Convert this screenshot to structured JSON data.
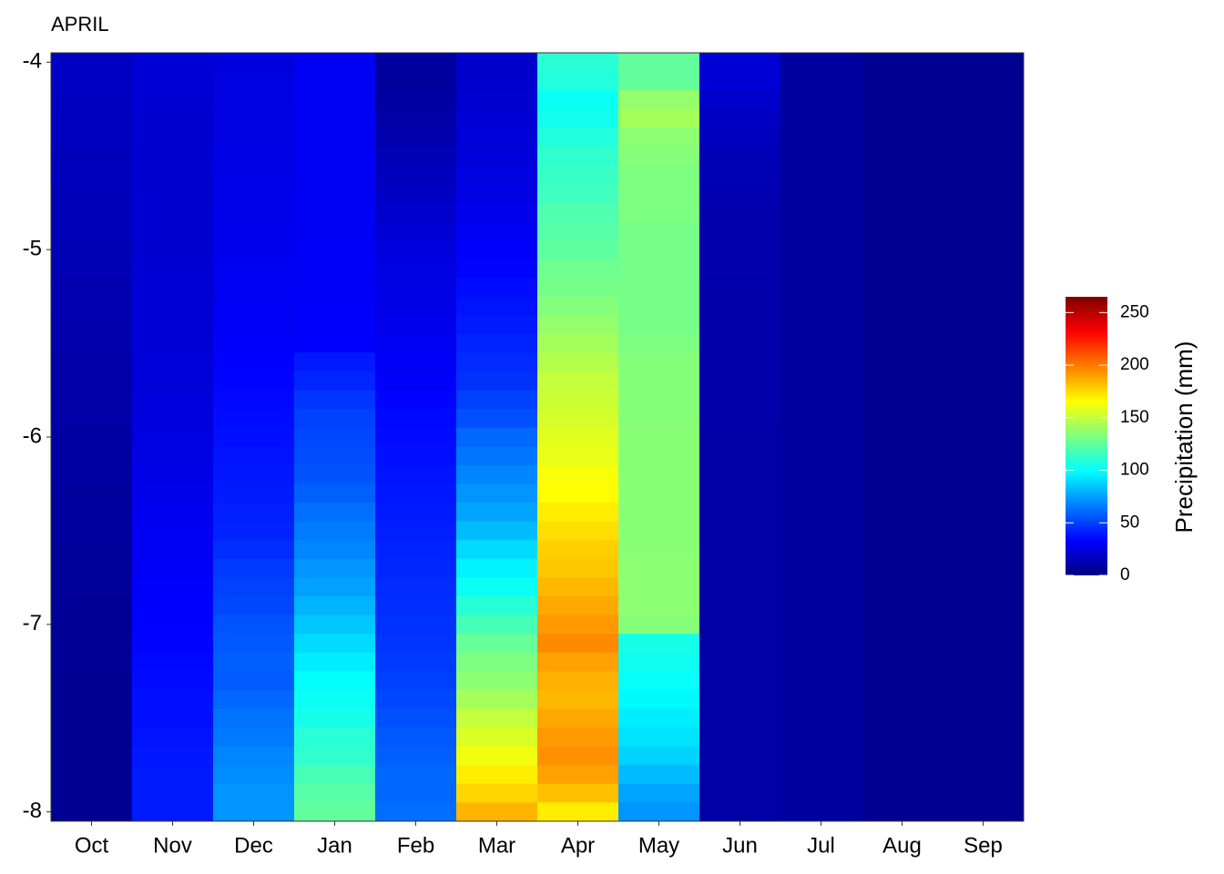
{
  "chart_data": {
    "type": "heatmap",
    "title": "APRIL",
    "categories": [
      "Oct",
      "Nov",
      "Dec",
      "Jan",
      "Feb",
      "Mar",
      "Apr",
      "May",
      "Jun",
      "Jul",
      "Aug",
      "Sep"
    ],
    "y": [
      -4,
      -4.1,
      -4.2,
      -4.3,
      -4.4,
      -4.5,
      -4.6,
      -4.7,
      -4.8,
      -4.9,
      -5,
      -5.1,
      -5.2,
      -5.3,
      -5.4,
      -5.5,
      -5.6,
      -5.7,
      -5.8,
      -5.9,
      -6,
      -6.1,
      -6.2,
      -6.3,
      -6.4,
      -6.5,
      -6.6,
      -6.7,
      -6.8,
      -6.9,
      -7,
      -7.1,
      -7.2,
      -7.3,
      -7.4,
      -7.5,
      -7.6,
      -7.7,
      -7.8,
      -7.9,
      -8
    ],
    "ylim": [
      -3.95,
      -8.05
    ],
    "yticks": [
      -4,
      -5,
      -6,
      -7,
      -8
    ],
    "z": [
      [
        18,
        18,
        17,
        17,
        17,
        16,
        16,
        15,
        15,
        15,
        14,
        14,
        13,
        13,
        12,
        12,
        11,
        11,
        10,
        10,
        9,
        9,
        9,
        8,
        8,
        8,
        7,
        7,
        7,
        6,
        6,
        6,
        6,
        5,
        5,
        5,
        5,
        5,
        5,
        5,
        5
      ],
      [
        22,
        22,
        22,
        21,
        21,
        21,
        21,
        21,
        21,
        21,
        21,
        22,
        22,
        22,
        22,
        22,
        23,
        23,
        24,
        24,
        25,
        26,
        27,
        28,
        29,
        30,
        30,
        31,
        32,
        33,
        33,
        34,
        35,
        36,
        37,
        37,
        38,
        39,
        40,
        40,
        40
      ],
      [
        24,
        25,
        25,
        26,
        26,
        27,
        27,
        28,
        28,
        29,
        29,
        30,
        30,
        31,
        31,
        32,
        33,
        34,
        35,
        36,
        37,
        38,
        39,
        40,
        41,
        42,
        45,
        48,
        50,
        52,
        55,
        56,
        58,
        57,
        60,
        63,
        65,
        68,
        70,
        72,
        72
      ],
      [
        30,
        30,
        30,
        30,
        30,
        30,
        30,
        30,
        30,
        30,
        31,
        31,
        31,
        32,
        32,
        33,
        40,
        43,
        47,
        50,
        52,
        53,
        55,
        58,
        62,
        65,
        68,
        72,
        75,
        80,
        85,
        90,
        95,
        100,
        102,
        105,
        110,
        112,
        118,
        122,
        125
      ],
      [
        8,
        8,
        9,
        10,
        12,
        14,
        16,
        18,
        20,
        22,
        24,
        25,
        26,
        27,
        28,
        30,
        31,
        32,
        34,
        35,
        36,
        37,
        38,
        39,
        40,
        41,
        42,
        43,
        44,
        45,
        46,
        47,
        48,
        50,
        52,
        54,
        56,
        58,
        60,
        60,
        62
      ],
      [
        20,
        20,
        21,
        22,
        23,
        24,
        25,
        26,
        28,
        30,
        32,
        34,
        36,
        38,
        40,
        42,
        44,
        46,
        50,
        54,
        60,
        64,
        68,
        72,
        76,
        82,
        90,
        96,
        102,
        110,
        118,
        126,
        132,
        136,
        142,
        150,
        156,
        162,
        170,
        176,
        185
      ],
      [
        110,
        108,
        102,
        104,
        108,
        112,
        114,
        116,
        120,
        122,
        124,
        128,
        130,
        134,
        138,
        142,
        146,
        150,
        152,
        155,
        158,
        160,
        164,
        166,
        170,
        174,
        178,
        180,
        184,
        188,
        192,
        196,
        190,
        186,
        184,
        188,
        192,
        194,
        190,
        182,
        170
      ],
      [
        125,
        125,
        138,
        142,
        136,
        134,
        132,
        132,
        132,
        130,
        130,
        130,
        130,
        130,
        130,
        132,
        134,
        134,
        134,
        134,
        135,
        135,
        135,
        135,
        135,
        135,
        135,
        136,
        136,
        136,
        134,
        105,
        103,
        101,
        98,
        95,
        92,
        88,
        82,
        76,
        72
      ],
      [
        22,
        22,
        20,
        18,
        16,
        15,
        14,
        13,
        12,
        12,
        12,
        12,
        11,
        11,
        11,
        11,
        11,
        11,
        11,
        11,
        10,
        10,
        10,
        10,
        10,
        10,
        10,
        10,
        10,
        10,
        10,
        10,
        10,
        10,
        10,
        10,
        10,
        10,
        10,
        10,
        10
      ],
      [
        8,
        8,
        8,
        8,
        8,
        8,
        8,
        8,
        8,
        8,
        8,
        8,
        8,
        8,
        8,
        8,
        8,
        8,
        8,
        8,
        8,
        8,
        8,
        8,
        8,
        8,
        8,
        8,
        8,
        8,
        8,
        8,
        8,
        8,
        8,
        8,
        8,
        8,
        8,
        8,
        8
      ],
      [
        5,
        5,
        5,
        5,
        5,
        5,
        5,
        5,
        5,
        5,
        5,
        5,
        5,
        5,
        5,
        5,
        5,
        5,
        5,
        5,
        5,
        5,
        5,
        5,
        5,
        5,
        5,
        5,
        5,
        5,
        5,
        5,
        5,
        5,
        5,
        5,
        5,
        5,
        5,
        5,
        5
      ],
      [
        5,
        5,
        5,
        5,
        5,
        5,
        5,
        5,
        5,
        5,
        5,
        5,
        5,
        5,
        5,
        5,
        5,
        5,
        5,
        5,
        5,
        5,
        5,
        5,
        5,
        5,
        5,
        5,
        5,
        5,
        5,
        5,
        5,
        5,
        5,
        5,
        5,
        5,
        5,
        5,
        5
      ]
    ],
    "colorscale": [
      "#00007f",
      "#0000ff",
      "#007fff",
      "#00ffff",
      "#7fff7f",
      "#ffff00",
      "#ff7f00",
      "#ff0000",
      "#7f0000"
    ],
    "clim": [
      0,
      265
    ],
    "cticks": [
      0,
      50,
      100,
      150,
      200,
      250
    ],
    "legend_title": "Precipitation (mm)"
  }
}
